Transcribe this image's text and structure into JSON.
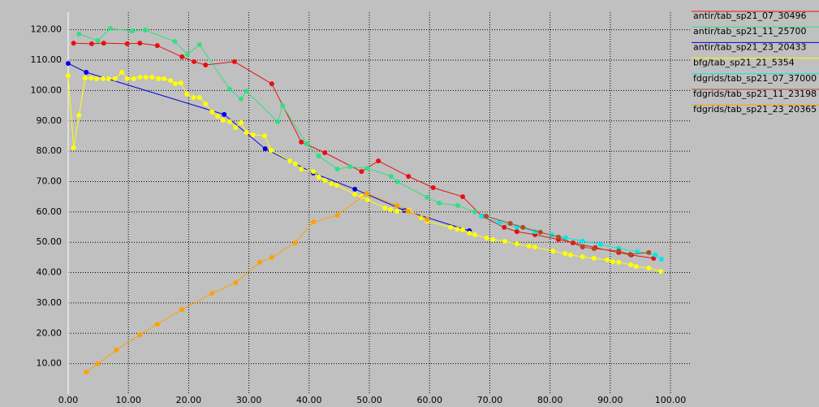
{
  "chart_data": {
    "type": "line",
    "xlim": [
      0,
      103.5
    ],
    "ylim": [
      0,
      125
    ],
    "xticks": [
      {
        "value": 0,
        "label": "0.00"
      },
      {
        "value": 10,
        "label": "10.00"
      },
      {
        "value": 20,
        "label": "20.00"
      },
      {
        "value": 30,
        "label": "30.00"
      },
      {
        "value": 40,
        "label": "40.00"
      },
      {
        "value": 50,
        "label": "50.00"
      },
      {
        "value": 60,
        "label": "60.00"
      },
      {
        "value": 70,
        "label": "70.00"
      },
      {
        "value": 80,
        "label": "80.00"
      },
      {
        "value": 90,
        "label": "90.00"
      },
      {
        "value": 100,
        "label": "100.00"
      }
    ],
    "yticks": [
      {
        "value": 10,
        "label": "10.00"
      },
      {
        "value": 20,
        "label": "20.00"
      },
      {
        "value": 30,
        "label": "30.00"
      },
      {
        "value": 40,
        "label": "40.00"
      },
      {
        "value": 50,
        "label": "50.00"
      },
      {
        "value": 60,
        "label": "60.00"
      },
      {
        "value": 70,
        "label": "70.00"
      },
      {
        "value": 80,
        "label": "80.00"
      },
      {
        "value": 90,
        "label": "90.00"
      },
      {
        "value": 100,
        "label": "100.00"
      },
      {
        "value": 110,
        "label": "110.00"
      },
      {
        "value": 120,
        "label": "120.00"
      }
    ],
    "grid": true,
    "series": [
      {
        "name": "antir/tab_sp21_07_30496",
        "color": "#e81010",
        "x": [
          0.9,
          3.9,
          5.9,
          9.8,
          11.9,
          14.8,
          18.9,
          20.9,
          22.8,
          27.6,
          33.8,
          38.7,
          42.6,
          48.7,
          51.5,
          56.5,
          60.6,
          65.5,
          68.7,
          72.4,
          74.5,
          77.5,
          81.4,
          83.8,
          87.5,
          91.4,
          93.5,
          97.2
        ],
        "values": [
          115.6,
          115.4,
          115.6,
          115.4,
          115.6,
          114.8,
          111.1,
          109.5,
          108.4,
          109.5,
          102.2,
          83.0,
          79.5,
          73.3,
          76.8,
          71.7,
          68.0,
          65.0,
          58.6,
          54.9,
          53.5,
          52.5,
          50.9,
          49.8,
          48.2,
          46.6,
          45.8,
          44.7
        ]
      },
      {
        "name": "antir/tab_sp21_11_25700",
        "color": "#30e080",
        "x": [
          1.8,
          4.9,
          7.0,
          10.6,
          12.8,
          17.7,
          19.8,
          21.8,
          26.8,
          28.7,
          29.6,
          34.8,
          35.6,
          39.6,
          41.6,
          44.7,
          46.8,
          49.7,
          53.6,
          54.7,
          59.6,
          61.6,
          64.7,
          67.5
        ],
        "values": [
          118.6,
          116.4,
          120.4,
          119.6,
          119.9,
          116.2,
          111.9,
          115.1,
          100.4,
          97.2,
          99.8,
          89.7,
          95.0,
          82.4,
          78.4,
          74.1,
          74.9,
          74.4,
          71.7,
          69.9,
          64.8,
          62.9,
          62.1,
          60.0
        ]
      },
      {
        "name": "antir/tab_sp21_23_20433",
        "color": "#0000e0",
        "x": [
          0,
          3.0,
          25.9,
          32.7,
          40.7,
          47.6,
          55.8,
          66.6
        ],
        "values": [
          108.9,
          106.0,
          92.1,
          80.8,
          72.8,
          67.5,
          60.5,
          53.8
        ]
      },
      {
        "name": "bfg/tab_sp21_21_5354",
        "color": "#ffff00",
        "x": [
          0,
          0.9,
          1.8,
          2.8,
          3.8,
          4.7,
          5.8,
          6.7,
          7.8,
          8.9,
          9.8,
          10.9,
          11.9,
          12.9,
          13.9,
          15.0,
          15.9,
          17.0,
          17.8,
          18.7,
          19.7,
          20.8,
          21.8,
          22.8,
          23.9,
          24.8,
          25.7,
          26.8,
          27.8,
          28.7,
          29.6,
          30.7,
          32.6,
          33.7,
          36.8,
          37.7,
          38.7,
          40.7,
          41.6,
          42.6,
          43.7,
          44.6,
          47.6,
          48.7,
          49.7,
          52.6,
          53.5,
          54.6,
          56.6,
          58.6,
          59.6,
          63.5,
          64.6,
          65.5,
          66.6,
          67.5,
          69.5,
          70.5,
          72.5,
          74.5,
          76.5,
          77.5,
          80.5,
          82.5,
          83.4,
          85.4,
          87.3,
          89.5,
          90.4,
          91.4,
          93.4,
          94.3,
          96.4,
          98.4
        ],
        "values": [
          104.9,
          81.1,
          91.8,
          104.1,
          104.1,
          103.9,
          103.9,
          103.9,
          103.9,
          106.0,
          103.9,
          103.9,
          104.4,
          104.4,
          104.4,
          103.9,
          103.9,
          103.3,
          102.2,
          102.5,
          98.8,
          97.7,
          97.7,
          95.6,
          92.9,
          91.5,
          90.2,
          89.7,
          87.8,
          89.4,
          86.2,
          85.4,
          85.1,
          80.3,
          76.8,
          75.8,
          74.1,
          73.3,
          71.5,
          70.4,
          69.3,
          68.8,
          65.8,
          65.0,
          64.0,
          61.3,
          60.8,
          60.2,
          60.5,
          58.1,
          57.0,
          54.9,
          54.3,
          54.1,
          53.0,
          52.5,
          51.4,
          50.9,
          50.3,
          49.5,
          48.7,
          48.4,
          47.1,
          46.3,
          45.8,
          45.2,
          44.7,
          44.2,
          43.6,
          43.4,
          42.6,
          42.0,
          41.5,
          40.4
        ]
      },
      {
        "name": "fdgrids/tab_sp21_07_37000",
        "color": "#00e8e8",
        "x": [
          68.6,
          71.6,
          74.5,
          77.5,
          80.3,
          82.6,
          85.4,
          88.4,
          91.4,
          94.5,
          97.5,
          98.5
        ],
        "values": [
          58.6,
          56.5,
          55.0,
          53.5,
          52.4,
          51.5,
          50.4,
          49.3,
          48.0,
          46.9,
          45.8,
          44.4
        ]
      },
      {
        "name": "fdgrids/tab_sp21_11_23198",
        "color": "#b04a20",
        "x": [
          69.4,
          73.4,
          75.5,
          78.4,
          81.4,
          85.4,
          87.3,
          91.4,
          93.3,
          96.4
        ],
        "values": [
          58.6,
          56.2,
          54.9,
          53.3,
          51.7,
          48.4,
          47.9,
          47.1,
          46.0,
          46.6
        ]
      },
      {
        "name": "fdgrids/tab_sp21_23_20365",
        "color": "#ffa000",
        "x": [
          3.0,
          4.9,
          8.0,
          11.9,
          14.8,
          18.9,
          23.9,
          27.8,
          31.8,
          33.8,
          37.7,
          40.7,
          44.7,
          49.6,
          54.6,
          56.5,
          59.6
        ],
        "values": [
          7.2,
          9.9,
          14.5,
          19.5,
          23.0,
          27.8,
          33.2,
          36.7,
          43.4,
          45.0,
          49.8,
          56.7,
          58.9,
          66.1,
          62.1,
          60.2,
          57.5
        ]
      }
    ]
  }
}
